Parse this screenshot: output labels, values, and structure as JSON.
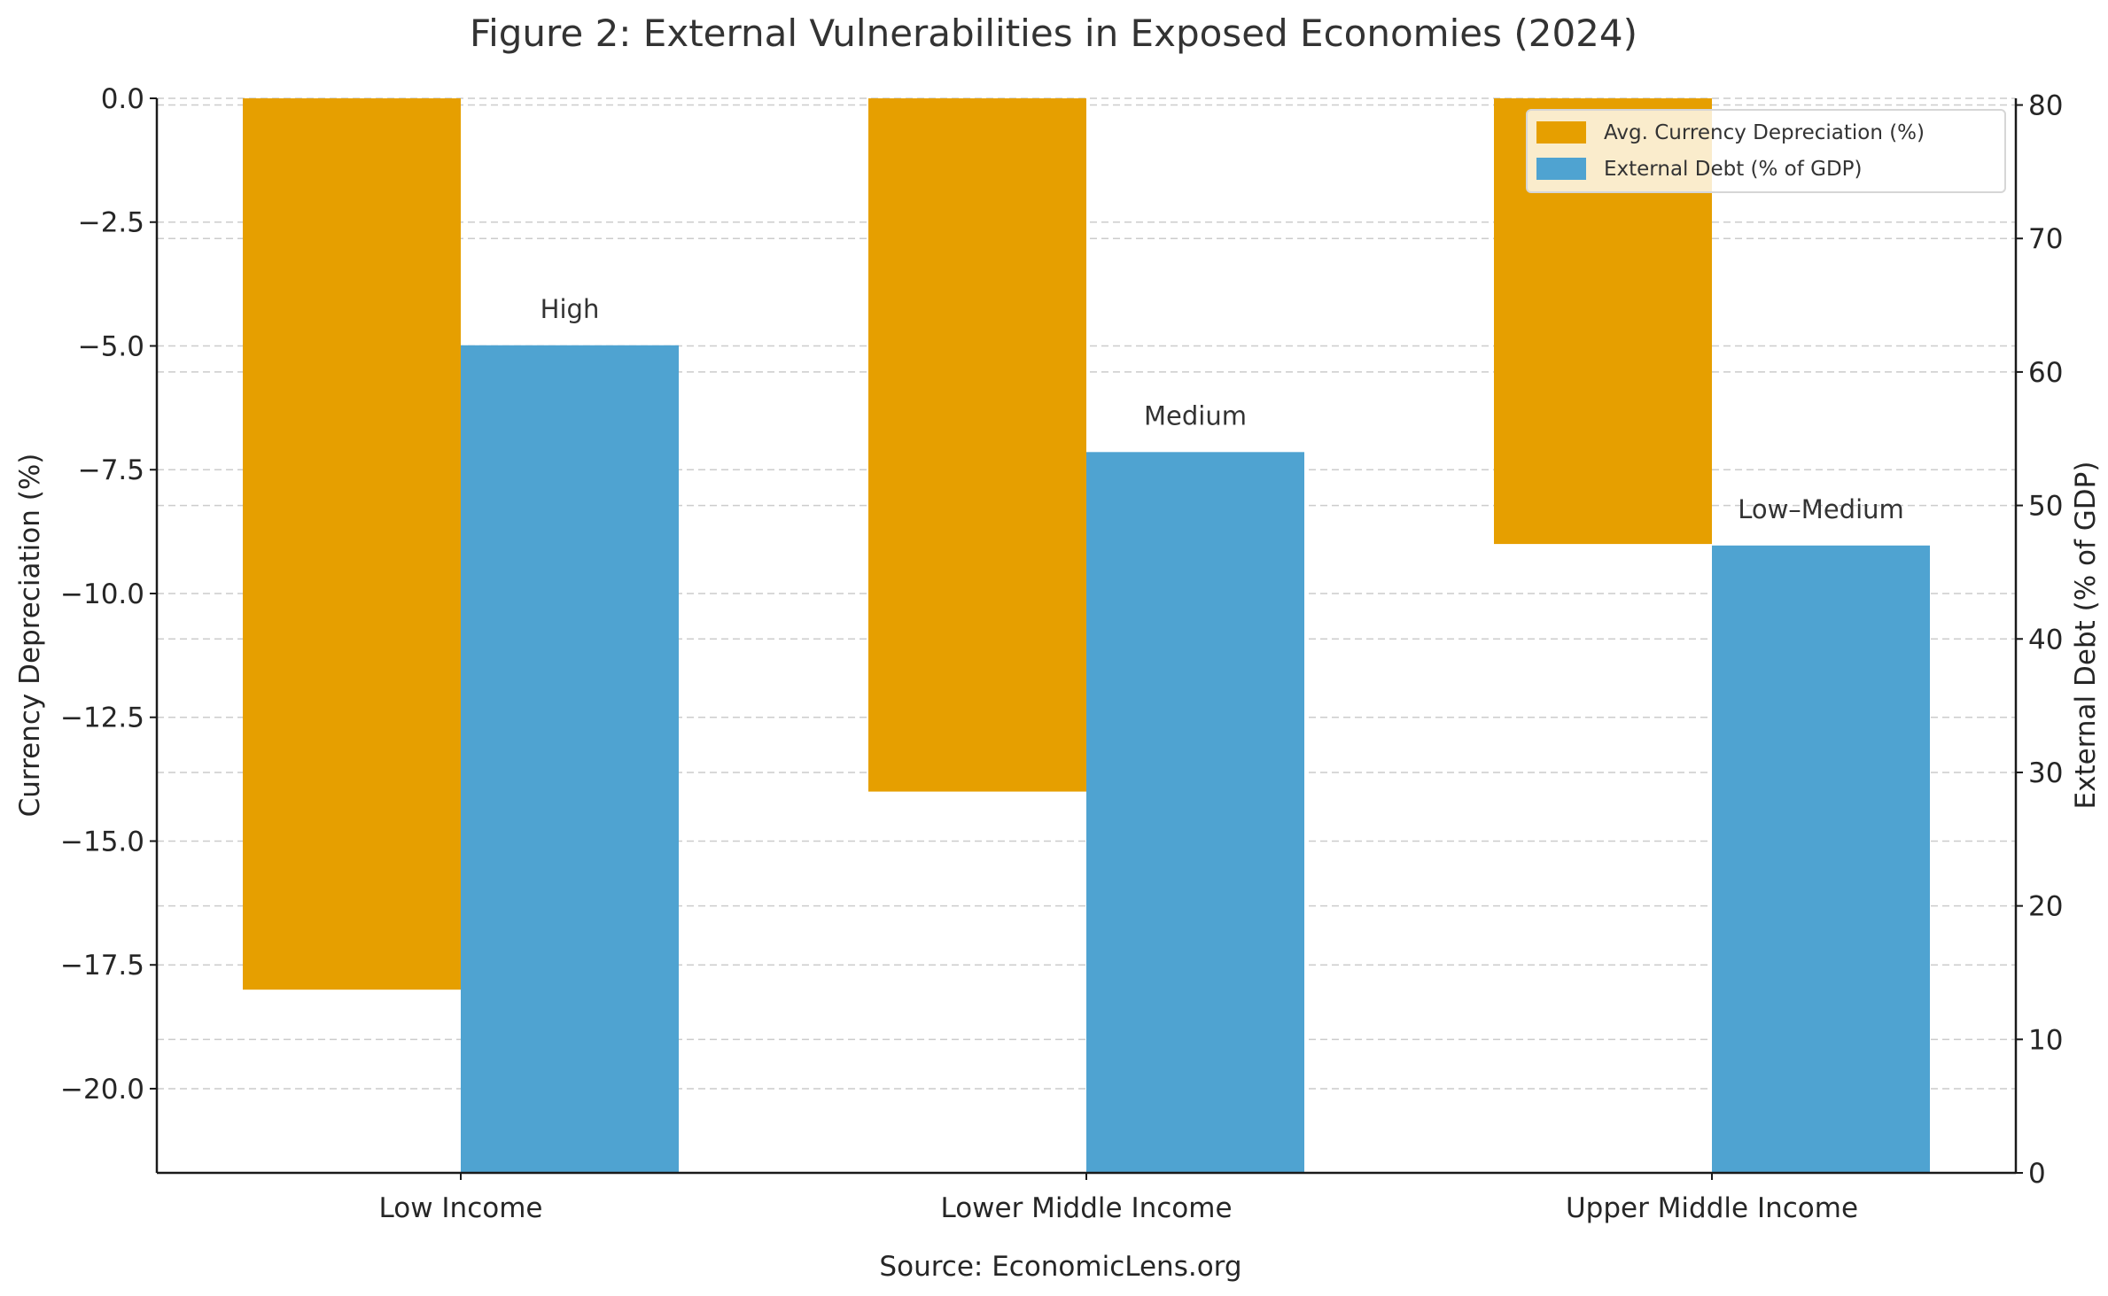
{
  "chart_data": {
    "type": "bar",
    "title": "Figure 2: External Vulnerabilities in Exposed Economies (2024)",
    "source": "Source: EconomicLens.org",
    "categories": [
      "Low Income",
      "Lower Middle Income",
      "Upper Middle Income"
    ],
    "series": [
      {
        "name": "Avg. Currency Depreciation (%)",
        "axis": "left",
        "color": "#E69F00",
        "values": [
          -18,
          -14,
          -9
        ]
      },
      {
        "name": "External Debt (% of GDP)",
        "axis": "right",
        "color": "#4FA3D1",
        "values": [
          62,
          54,
          47
        ]
      }
    ],
    "annotations": [
      "High",
      "Medium",
      "Low–Medium"
    ],
    "y_left": {
      "label": "Currency Depreciation (%)",
      "ylim": [
        -21.7,
        0
      ],
      "ticks": [
        0,
        -2.5,
        -5,
        -7.5,
        -10,
        -12.5,
        -15,
        -17.5,
        -20
      ],
      "tick_labels": [
        "0.0",
        "−2.5",
        "−5.0",
        "−7.5",
        "−10.0",
        "−12.5",
        "−15.0",
        "−17.5",
        "−20.0"
      ]
    },
    "y_right": {
      "label": "External Debt (% of GDP)",
      "ylim": [
        0,
        80.5
      ],
      "ticks": [
        0,
        10,
        20,
        30,
        40,
        50,
        60,
        70,
        80
      ],
      "tick_labels": [
        "0",
        "10",
        "20",
        "30",
        "40",
        "50",
        "60",
        "70",
        "80"
      ]
    },
    "grid": true,
    "legend_position": "top-right"
  }
}
